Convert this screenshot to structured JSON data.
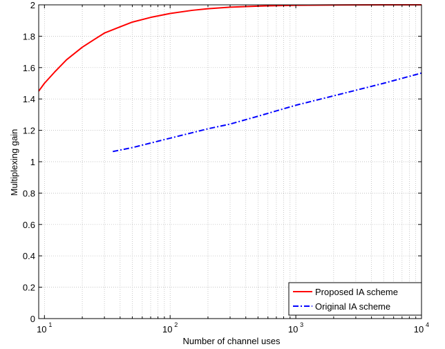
{
  "chart_data": {
    "type": "line",
    "xlabel": "Number of channel uses",
    "ylabel": "Multiplexing gain",
    "xscale": "log",
    "xlim": [
      9,
      10000
    ],
    "ylim": [
      0,
      2
    ],
    "grid": true,
    "legend_position": "bottom-right",
    "x_ticks": [
      {
        "value": 10,
        "label": "10",
        "exp": "1"
      },
      {
        "value": 100,
        "label": "10",
        "exp": "2"
      },
      {
        "value": 1000,
        "label": "10",
        "exp": "3"
      },
      {
        "value": 10000,
        "label": "10",
        "exp": "4"
      }
    ],
    "y_ticks": [
      {
        "value": 0,
        "label": "0"
      },
      {
        "value": 0.2,
        "label": "0.2"
      },
      {
        "value": 0.4,
        "label": "0.4"
      },
      {
        "value": 0.6,
        "label": "0.6"
      },
      {
        "value": 0.8,
        "label": "0.8"
      },
      {
        "value": 1,
        "label": "1"
      },
      {
        "value": 1.2,
        "label": "1.2"
      },
      {
        "value": 1.4,
        "label": "1.4"
      },
      {
        "value": 1.6,
        "label": "1.6"
      },
      {
        "value": 1.8,
        "label": "1.8"
      },
      {
        "value": 2,
        "label": "2"
      }
    ],
    "series": [
      {
        "name": "Proposed IA scheme",
        "color": "#ff0000",
        "style": "solid",
        "x": [
          9,
          10,
          12,
          15,
          20,
          25,
          30,
          40,
          50,
          70,
          100,
          150,
          200,
          300,
          500,
          1000,
          2000,
          5000,
          10000
        ],
        "y": [
          1.45,
          1.5,
          1.57,
          1.65,
          1.73,
          1.78,
          1.82,
          1.86,
          1.89,
          1.92,
          1.945,
          1.965,
          1.975,
          1.985,
          1.992,
          1.997,
          1.999,
          2.0,
          2.0
        ]
      },
      {
        "name": "Original IA scheme",
        "color": "#0000ff",
        "style": "dashdot",
        "x": [
          35,
          50,
          100,
          200,
          300,
          500,
          1000,
          2000,
          5000,
          10000
        ],
        "y": [
          1.065,
          1.09,
          1.15,
          1.21,
          1.24,
          1.29,
          1.36,
          1.42,
          1.5,
          1.565
        ]
      }
    ]
  }
}
